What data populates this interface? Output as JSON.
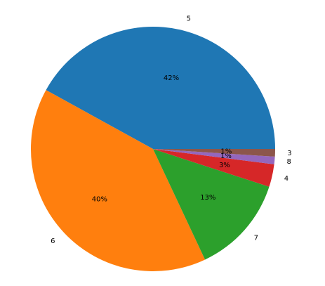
{
  "chart_data": {
    "type": "pie",
    "categories": [
      "5",
      "6",
      "7",
      "4",
      "8",
      "3"
    ],
    "values": [
      42,
      40,
      13,
      3,
      1,
      1
    ],
    "value_labels": [
      "42%",
      "40%",
      "13%",
      "3%",
      "1%",
      "1%"
    ],
    "colors": [
      "#1f77b4",
      "#ff7f0e",
      "#2ca02c",
      "#d62728",
      "#9467bd",
      "#8c564b"
    ]
  }
}
